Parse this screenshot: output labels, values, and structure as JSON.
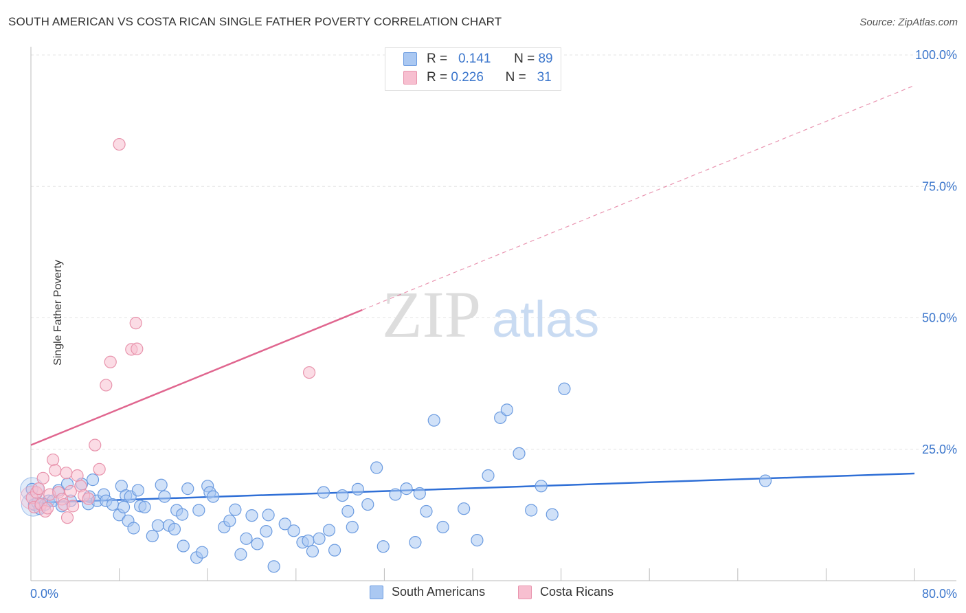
{
  "title": "SOUTH AMERICAN VS COSTA RICAN SINGLE FATHER POVERTY CORRELATION CHART",
  "source_label": "Source:",
  "source_site": "ZipAtlas.com",
  "legend": {
    "r_label": "R =",
    "n_label": "N =",
    "rows": [
      {
        "r": "0.141",
        "n": "89"
      },
      {
        "r": "0.226",
        "n": "31"
      }
    ]
  },
  "watermark": {
    "zip": "ZIP",
    "atlas": "atlas"
  },
  "colors": {
    "blue_fill": "#aac8f2",
    "blue_stroke": "#6b9be0",
    "blue_line": "#2f6fd6",
    "pink_fill": "#f7bfd0",
    "pink_stroke": "#e893ac",
    "pink_line": "#e0668f",
    "tick_label": "#3b76cc",
    "grid": "#e3e3e3"
  },
  "chart_data": {
    "type": "scatter",
    "title": "SOUTH AMERICAN VS COSTA RICAN SINGLE FATHER POVERTY CORRELATION CHART",
    "xlabel": "",
    "ylabel": "Single Father Poverty",
    "xlim": [
      0,
      80
    ],
    "ylim": [
      0,
      100
    ],
    "x_tick_labels": [
      "0.0%",
      "80.0%"
    ],
    "y_ticks": [
      {
        "value": 25,
        "label": "25.0%"
      },
      {
        "value": 50,
        "label": "50.0%"
      },
      {
        "value": 75,
        "label": "75.0%"
      },
      {
        "value": 100,
        "label": "100.0%"
      }
    ],
    "series": [
      {
        "name": "South Americans",
        "color": "blue",
        "trend": {
          "x0": 0,
          "y0": 14.8,
          "x1": 80,
          "y1": 20.4
        },
        "points": [
          [
            0.1,
            17.4
          ],
          [
            0.3,
            14.5
          ],
          [
            0.6,
            14.8
          ],
          [
            0.8,
            13.7
          ],
          [
            1.3,
            14.5
          ],
          [
            1.6,
            15.2
          ],
          [
            2.0,
            15.2
          ],
          [
            2.5,
            17.2
          ],
          [
            2.8,
            14.2
          ],
          [
            3.3,
            18.4
          ],
          [
            3.6,
            15.2
          ],
          [
            4.6,
            18.4
          ],
          [
            5.2,
            14.6
          ],
          [
            5.3,
            16.0
          ],
          [
            5.6,
            19.2
          ],
          [
            6.0,
            15.2
          ],
          [
            6.6,
            16.4
          ],
          [
            6.8,
            15.2
          ],
          [
            7.4,
            14.5
          ],
          [
            8.0,
            12.5
          ],
          [
            8.2,
            18.0
          ],
          [
            8.4,
            14.0
          ],
          [
            8.6,
            16.2
          ],
          [
            8.8,
            11.4
          ],
          [
            9.0,
            16.0
          ],
          [
            9.3,
            10.0
          ],
          [
            9.7,
            17.2
          ],
          [
            9.9,
            14.2
          ],
          [
            10.3,
            14.0
          ],
          [
            11.0,
            8.5
          ],
          [
            11.5,
            10.5
          ],
          [
            11.8,
            18.2
          ],
          [
            12.1,
            16.0
          ],
          [
            12.5,
            10.5
          ],
          [
            13.0,
            9.8
          ],
          [
            13.2,
            13.4
          ],
          [
            13.7,
            12.6
          ],
          [
            13.8,
            6.6
          ],
          [
            14.2,
            17.5
          ],
          [
            15.0,
            4.4
          ],
          [
            15.2,
            13.4
          ],
          [
            15.5,
            5.4
          ],
          [
            16.0,
            18.0
          ],
          [
            16.2,
            16.8
          ],
          [
            16.5,
            16.0
          ],
          [
            17.5,
            10.2
          ],
          [
            18.0,
            11.4
          ],
          [
            18.5,
            13.5
          ],
          [
            19.0,
            5.0
          ],
          [
            19.5,
            8.0
          ],
          [
            20.0,
            12.4
          ],
          [
            20.5,
            7.0
          ],
          [
            21.3,
            9.4
          ],
          [
            21.5,
            12.5
          ],
          [
            22.0,
            2.7
          ],
          [
            23.0,
            10.8
          ],
          [
            23.8,
            9.5
          ],
          [
            24.6,
            7.3
          ],
          [
            25.1,
            7.6
          ],
          [
            25.5,
            5.6
          ],
          [
            26.1,
            8.0
          ],
          [
            26.5,
            16.8
          ],
          [
            27.0,
            9.6
          ],
          [
            27.5,
            5.8
          ],
          [
            28.2,
            16.2
          ],
          [
            28.7,
            13.2
          ],
          [
            29.1,
            10.2
          ],
          [
            29.6,
            17.4
          ],
          [
            30.5,
            14.5
          ],
          [
            31.3,
            21.5
          ],
          [
            31.9,
            6.5
          ],
          [
            33.0,
            16.4
          ],
          [
            34.0,
            17.5
          ],
          [
            34.8,
            7.3
          ],
          [
            35.2,
            16.6
          ],
          [
            35.8,
            13.2
          ],
          [
            36.5,
            30.5
          ],
          [
            37.3,
            10.2
          ],
          [
            39.2,
            13.7
          ],
          [
            40.4,
            7.7
          ],
          [
            41.4,
            20.0
          ],
          [
            42.5,
            31.0
          ],
          [
            43.1,
            32.5
          ],
          [
            44.2,
            24.2
          ],
          [
            45.3,
            13.4
          ],
          [
            46.2,
            18.0
          ],
          [
            47.2,
            12.6
          ],
          [
            48.3,
            36.5
          ],
          [
            66.5,
            19.0
          ]
        ],
        "large_points": [
          [
            0.1,
            17.4
          ],
          [
            0.2,
            14.5
          ]
        ]
      },
      {
        "name": "Costa Ricans",
        "color": "pink",
        "trend": {
          "x0": 0,
          "y0": 25.8,
          "x1": 30,
          "y1": 51.5,
          "x_end": 80,
          "y_end": 94.2
        },
        "points": [
          [
            0.1,
            15.8
          ],
          [
            0.3,
            14.0
          ],
          [
            0.5,
            16.8
          ],
          [
            0.7,
            17.5
          ],
          [
            0.9,
            14.5
          ],
          [
            1.1,
            19.5
          ],
          [
            1.3,
            13.2
          ],
          [
            1.5,
            13.8
          ],
          [
            1.7,
            16.4
          ],
          [
            2.0,
            23.0
          ],
          [
            2.2,
            21.0
          ],
          [
            2.5,
            16.8
          ],
          [
            2.8,
            15.5
          ],
          [
            3.0,
            14.5
          ],
          [
            3.2,
            20.5
          ],
          [
            3.3,
            12.0
          ],
          [
            3.6,
            17.0
          ],
          [
            3.8,
            14.2
          ],
          [
            4.2,
            20.0
          ],
          [
            4.5,
            18.0
          ],
          [
            4.8,
            16.2
          ],
          [
            5.2,
            15.6
          ],
          [
            5.8,
            25.8
          ],
          [
            6.2,
            21.2
          ],
          [
            6.8,
            37.2
          ],
          [
            7.2,
            41.6
          ],
          [
            8.0,
            83.0
          ],
          [
            9.1,
            44.0
          ],
          [
            9.5,
            49.0
          ],
          [
            9.6,
            44.1
          ],
          [
            25.2,
            39.6
          ]
        ],
        "large_points": [
          [
            0.1,
            15.8
          ]
        ]
      }
    ]
  },
  "bottom_legend": [
    {
      "label": "South Americans"
    },
    {
      "label": "Costa Ricans"
    }
  ]
}
